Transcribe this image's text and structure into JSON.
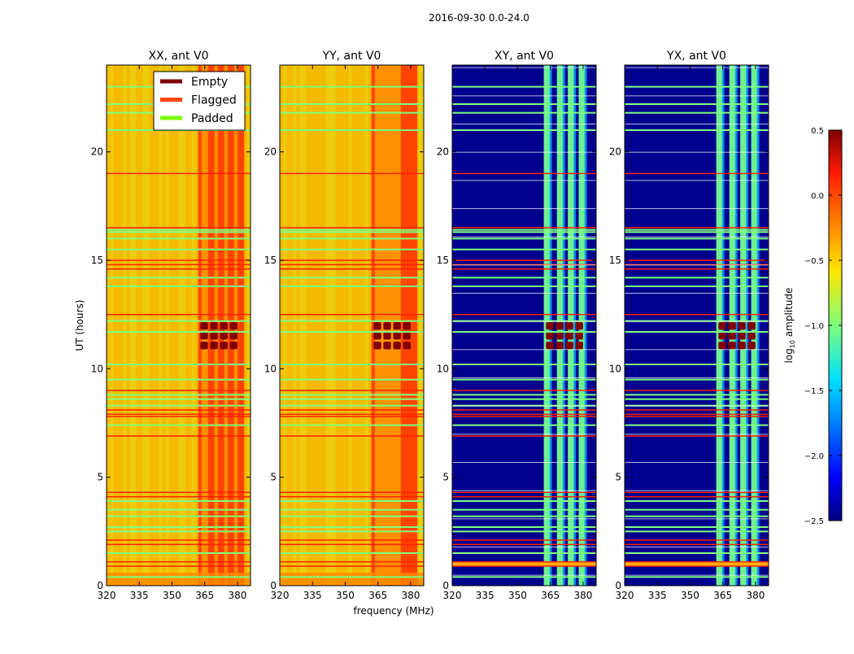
{
  "chart_data": {
    "type": "heatmap",
    "suptitle": "2016-09-30 0.0-24.0",
    "xlabel": "frequency (MHz)",
    "ylabel": "UT (hours)",
    "xlim": [
      320,
      386
    ],
    "ylim": [
      0,
      24
    ],
    "xticks": [
      320,
      335,
      350,
      365,
      380
    ],
    "yticks": [
      0,
      5,
      10,
      15,
      20
    ],
    "panels": [
      {
        "title": "XX, ant V0",
        "kind": "auto"
      },
      {
        "title": "YY, ant V0",
        "kind": "auto"
      },
      {
        "title": "XY, ant V0",
        "kind": "cross"
      },
      {
        "title": "YX, ant V0",
        "kind": "cross"
      }
    ],
    "bright_band_mhz": [
      362,
      382
    ],
    "strong_rfi_hours": [
      10.9,
      12.1
    ],
    "flagged_hours": [
      0.9,
      1.1,
      1.9,
      2.1,
      4.1,
      4.3,
      6.9,
      7.8,
      7.9,
      8.1,
      9.0,
      12.5,
      14.6,
      14.8,
      15.0,
      16.5,
      19.0
    ],
    "padded_hours": [
      0.4,
      1.5,
      2.5,
      2.7,
      3.2,
      3.5,
      3.9,
      7.4,
      8.3,
      8.6,
      8.8,
      9.5,
      10.2,
      11.7,
      12.2,
      13.8,
      14.2,
      15.5,
      16.0,
      16.3,
      16.4,
      21.0,
      21.8,
      22.2,
      23.0
    ],
    "legend": {
      "placement": "upper-right of first panel",
      "entries": [
        {
          "label": "Empty",
          "color": "#800000"
        },
        {
          "label": "Flagged",
          "color": "#ff4500"
        },
        {
          "label": "Padded",
          "color": "#7cfc00"
        }
      ]
    },
    "colorbar": {
      "label": "log10 amplitude",
      "label_main": "log",
      "label_sub": "10",
      "label_rest": " amplitude",
      "range": [
        -2.5,
        0.5
      ],
      "ticks": [
        "0.5",
        "0.0",
        "−0.5",
        "−1.0",
        "−1.5",
        "−2.0",
        "−2.5"
      ],
      "tick_values": [
        0.5,
        0.0,
        -0.5,
        -1.0,
        -1.5,
        -2.0,
        -2.5
      ]
    }
  }
}
